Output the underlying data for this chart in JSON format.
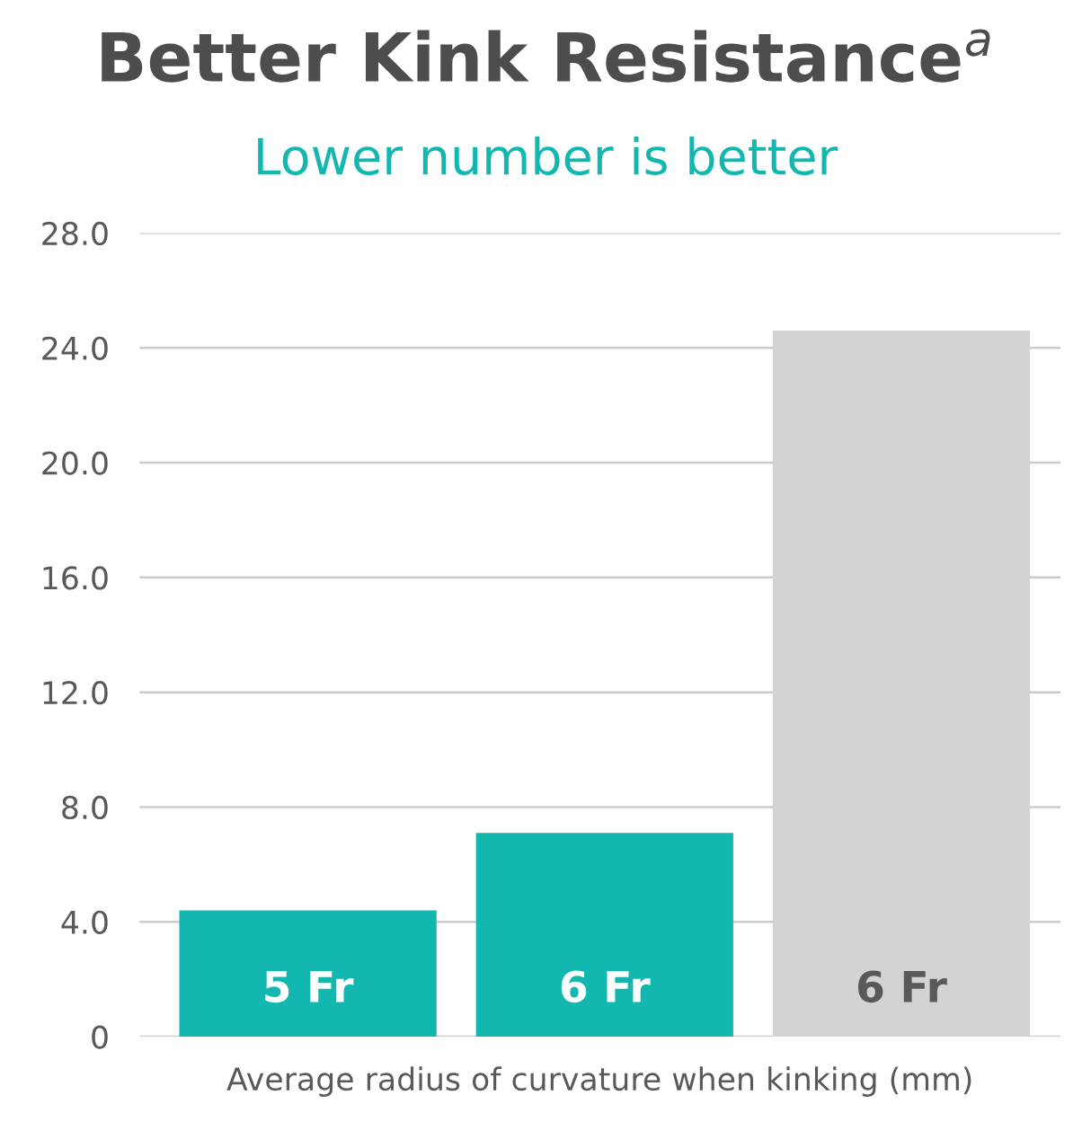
{
  "chart_data": {
    "type": "bar",
    "title": "Better Kink Resistance$^{a}$",
    "subtitle": "Lower number is better",
    "xlabel": "Average radius of curvature when kinking (mm)",
    "categories": [
      "5 Fr",
      "6 Fr",
      "6 Fr"
    ],
    "values": [
      4.4,
      7.1,
      24.6
    ],
    "colors": [
      "#12b8b0",
      "#12b8b0",
      "#d1d3d4"
    ],
    "ylim": [
      0,
      28
    ],
    "yticks": [
      {
        "value": 0,
        "label": "0"
      },
      {
        "value": 4,
        "label": "4.0"
      },
      {
        "value": 8,
        "label": "8.0"
      },
      {
        "value": 12,
        "label": "12.0"
      },
      {
        "value": 16,
        "label": "16.0"
      },
      {
        "value": 20,
        "label": "20.0"
      },
      {
        "value": 24,
        "label": "24.0"
      },
      {
        "value": 28,
        "label": "28.0"
      }
    ],
    "grid": "y"
  }
}
